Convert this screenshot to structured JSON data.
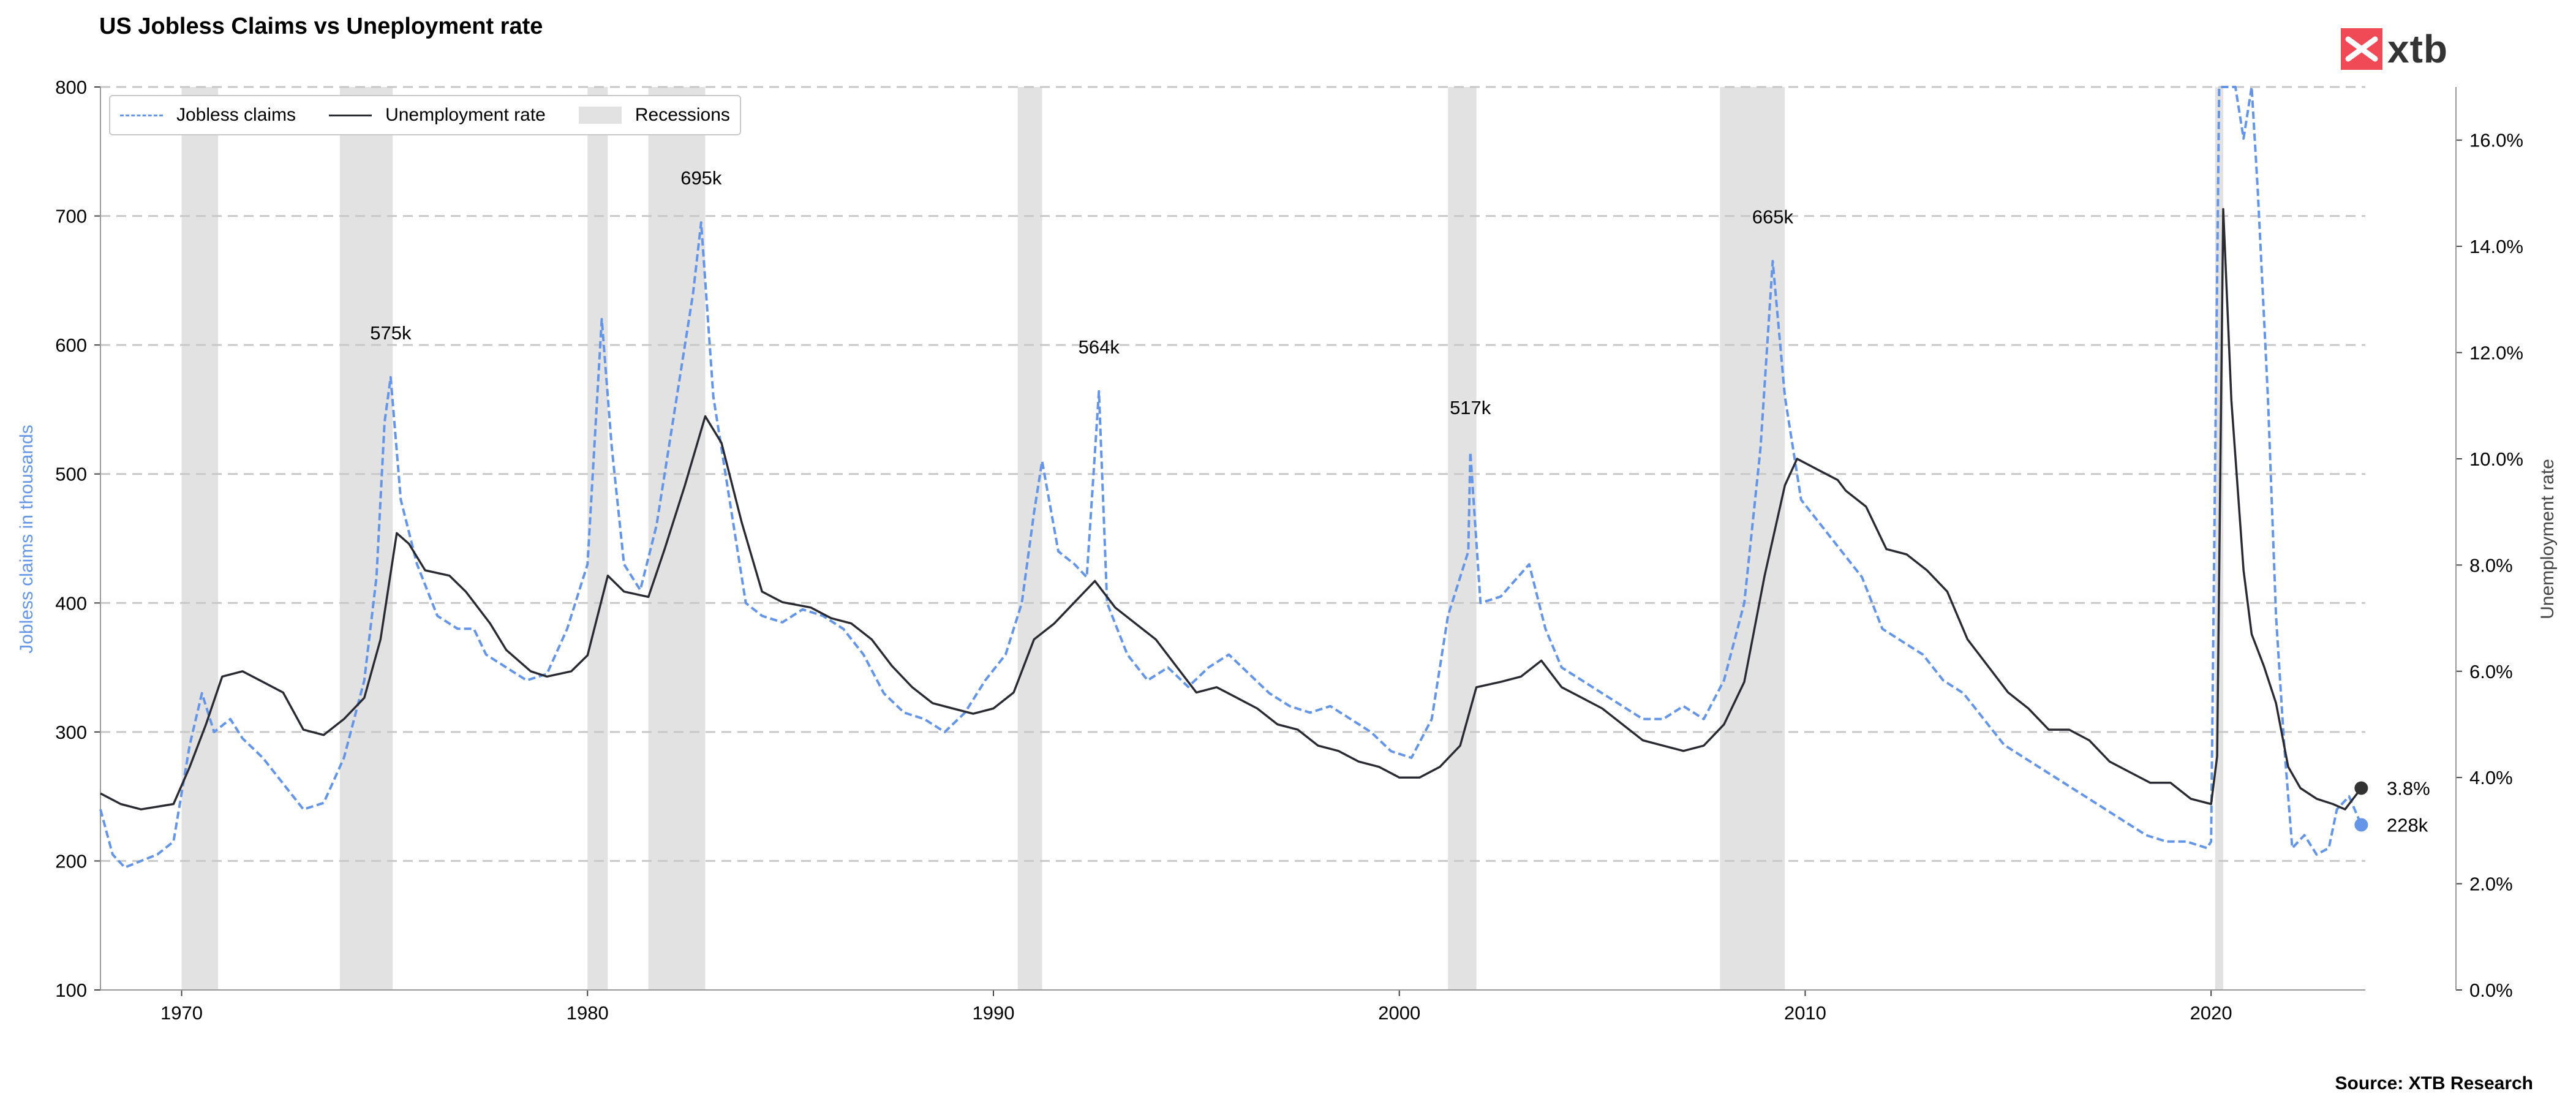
{
  "title": "US Jobless Claims vs Uneployment rate",
  "source": "Source: XTB Research",
  "logo_text": "xtb",
  "colors": {
    "claims": "#6495e6",
    "unemployment": "#2a2a33",
    "recession": "#e2e2e2",
    "grid": "#c8c8c8",
    "logo": "#f04a57"
  },
  "legend": {
    "claims": "Jobless claims",
    "unemployment": "Unemployment rate",
    "recessions": "Recessions"
  },
  "axes": {
    "left_label": "Jobless claims in thousands",
    "right_label": "Unemployment rate"
  },
  "chart_data": {
    "type": "line",
    "title": "US Jobless Claims vs Uneployment rate",
    "x_range": [
      1968.0,
      2023.8
    ],
    "x_ticks": [
      "1970",
      "1980",
      "1990",
      "2000",
      "2010",
      "2020"
    ],
    "y_left": {
      "label": "Jobless claims in thousands",
      "range": [
        100,
        800
      ],
      "ticks": [
        "100",
        "200",
        "300",
        "400",
        "500",
        "600",
        "700",
        "800"
      ]
    },
    "y_right": {
      "label": "Unemployment rate",
      "range": [
        0,
        17
      ],
      "ticks": [
        "0.0%",
        "2.0%",
        "4.0%",
        "6.0%",
        "8.0%",
        "10.0%",
        "12.0%",
        "14.0%",
        "16.0%"
      ]
    },
    "grid": "horizontal dashed",
    "legend_position": "top-left",
    "recessions": [
      [
        1970.0,
        1970.9
      ],
      [
        1973.9,
        1975.2
      ],
      [
        1980.0,
        1980.5
      ],
      [
        1981.5,
        1982.9
      ],
      [
        1990.6,
        1991.2
      ],
      [
        2001.2,
        2001.9
      ],
      [
        2007.9,
        2009.5
      ],
      [
        2020.1,
        2020.3
      ]
    ],
    "series": [
      {
        "name": "Jobless claims",
        "axis": "left",
        "style": "dashed",
        "points": [
          [
            1968.0,
            240
          ],
          [
            1968.3,
            205
          ],
          [
            1968.6,
            195
          ],
          [
            1969.0,
            200
          ],
          [
            1969.4,
            205
          ],
          [
            1969.8,
            215
          ],
          [
            1970.2,
            290
          ],
          [
            1970.5,
            330
          ],
          [
            1970.8,
            300
          ],
          [
            1971.2,
            310
          ],
          [
            1971.5,
            295
          ],
          [
            1972.0,
            280
          ],
          [
            1972.5,
            260
          ],
          [
            1973.0,
            240
          ],
          [
            1973.5,
            245
          ],
          [
            1974.0,
            280
          ],
          [
            1974.5,
            340
          ],
          [
            1974.8,
            420
          ],
          [
            1975.0,
            540
          ],
          [
            1975.15,
            575
          ],
          [
            1975.4,
            480
          ],
          [
            1975.8,
            430
          ],
          [
            1976.3,
            390
          ],
          [
            1976.8,
            380
          ],
          [
            1977.2,
            380
          ],
          [
            1977.5,
            360
          ],
          [
            1978.0,
            350
          ],
          [
            1978.5,
            340
          ],
          [
            1979.0,
            345
          ],
          [
            1979.5,
            380
          ],
          [
            1980.0,
            430
          ],
          [
            1980.35,
            620
          ],
          [
            1980.6,
            520
          ],
          [
            1980.9,
            430
          ],
          [
            1981.3,
            410
          ],
          [
            1981.7,
            460
          ],
          [
            1982.2,
            560
          ],
          [
            1982.6,
            640
          ],
          [
            1982.8,
            695
          ],
          [
            1983.1,
            560
          ],
          [
            1983.5,
            480
          ],
          [
            1983.9,
            400
          ],
          [
            1984.3,
            390
          ],
          [
            1984.8,
            385
          ],
          [
            1985.3,
            395
          ],
          [
            1985.8,
            390
          ],
          [
            1986.3,
            380
          ],
          [
            1986.8,
            360
          ],
          [
            1987.3,
            330
          ],
          [
            1987.8,
            315
          ],
          [
            1988.3,
            310
          ],
          [
            1988.8,
            300
          ],
          [
            1989.3,
            315
          ],
          [
            1989.8,
            340
          ],
          [
            1990.3,
            360
          ],
          [
            1990.7,
            400
          ],
          [
            1991.0,
            470
          ],
          [
            1991.2,
            510
          ],
          [
            1991.6,
            440
          ],
          [
            1992.0,
            430
          ],
          [
            1992.3,
            420
          ],
          [
            1992.6,
            564
          ],
          [
            1992.8,
            400
          ],
          [
            1993.3,
            360
          ],
          [
            1993.8,
            340
          ],
          [
            1994.3,
            350
          ],
          [
            1994.8,
            335
          ],
          [
            1995.3,
            350
          ],
          [
            1995.8,
            360
          ],
          [
            1996.3,
            345
          ],
          [
            1996.8,
            330
          ],
          [
            1997.3,
            320
          ],
          [
            1997.8,
            315
          ],
          [
            1998.3,
            320
          ],
          [
            1998.8,
            310
          ],
          [
            1999.3,
            300
          ],
          [
            1999.8,
            285
          ],
          [
            2000.3,
            280
          ],
          [
            2000.8,
            310
          ],
          [
            2001.2,
            390
          ],
          [
            2001.7,
            440
          ],
          [
            2001.75,
            517
          ],
          [
            2002.0,
            400
          ],
          [
            2002.5,
            405
          ],
          [
            2003.2,
            430
          ],
          [
            2003.6,
            380
          ],
          [
            2004.0,
            350
          ],
          [
            2004.5,
            340
          ],
          [
            2005.0,
            330
          ],
          [
            2005.5,
            320
          ],
          [
            2006.0,
            310
          ],
          [
            2006.5,
            310
          ],
          [
            2007.0,
            320
          ],
          [
            2007.5,
            310
          ],
          [
            2008.0,
            340
          ],
          [
            2008.5,
            400
          ],
          [
            2008.9,
            520
          ],
          [
            2009.2,
            665
          ],
          [
            2009.5,
            560
          ],
          [
            2009.9,
            480
          ],
          [
            2010.4,
            460
          ],
          [
            2010.9,
            440
          ],
          [
            2011.4,
            420
          ],
          [
            2011.9,
            380
          ],
          [
            2012.4,
            370
          ],
          [
            2012.9,
            360
          ],
          [
            2013.4,
            340
          ],
          [
            2013.9,
            330
          ],
          [
            2014.4,
            310
          ],
          [
            2014.9,
            290
          ],
          [
            2015.4,
            280
          ],
          [
            2015.9,
            270
          ],
          [
            2016.4,
            260
          ],
          [
            2016.9,
            250
          ],
          [
            2017.4,
            240
          ],
          [
            2017.9,
            230
          ],
          [
            2018.4,
            220
          ],
          [
            2018.9,
            215
          ],
          [
            2019.4,
            215
          ],
          [
            2019.9,
            210
          ],
          [
            2020.0,
            215
          ],
          [
            2020.2,
            800
          ],
          [
            2020.4,
            800
          ],
          [
            2020.6,
            800
          ],
          [
            2020.8,
            760
          ],
          [
            2021.0,
            800
          ],
          [
            2021.15,
            720
          ],
          [
            2021.4,
            560
          ],
          [
            2021.6,
            390
          ],
          [
            2021.8,
            290
          ],
          [
            2022.0,
            210
          ],
          [
            2022.3,
            220
          ],
          [
            2022.6,
            205
          ],
          [
            2022.9,
            210
          ],
          [
            2023.1,
            240
          ],
          [
            2023.4,
            250
          ],
          [
            2023.7,
            228
          ]
        ]
      },
      {
        "name": "Unemployment rate",
        "axis": "right",
        "style": "solid",
        "points": [
          [
            1968.0,
            3.7
          ],
          [
            1968.5,
            3.5
          ],
          [
            1969.0,
            3.4
          ],
          [
            1969.8,
            3.5
          ],
          [
            1970.2,
            4.2
          ],
          [
            1970.6,
            5.0
          ],
          [
            1971.0,
            5.9
          ],
          [
            1971.5,
            6.0
          ],
          [
            1972.0,
            5.8
          ],
          [
            1972.5,
            5.6
          ],
          [
            1973.0,
            4.9
          ],
          [
            1973.5,
            4.8
          ],
          [
            1974.0,
            5.1
          ],
          [
            1974.5,
            5.5
          ],
          [
            1974.9,
            6.6
          ],
          [
            1975.3,
            8.6
          ],
          [
            1975.6,
            8.4
          ],
          [
            1976.0,
            7.9
          ],
          [
            1976.6,
            7.8
          ],
          [
            1977.0,
            7.5
          ],
          [
            1977.6,
            6.9
          ],
          [
            1978.0,
            6.4
          ],
          [
            1978.6,
            6.0
          ],
          [
            1979.0,
            5.9
          ],
          [
            1979.6,
            6.0
          ],
          [
            1980.0,
            6.3
          ],
          [
            1980.5,
            7.8
          ],
          [
            1980.9,
            7.5
          ],
          [
            1981.5,
            7.4
          ],
          [
            1981.9,
            8.3
          ],
          [
            1982.4,
            9.5
          ],
          [
            1982.9,
            10.8
          ],
          [
            1983.3,
            10.3
          ],
          [
            1983.8,
            8.8
          ],
          [
            1984.3,
            7.5
          ],
          [
            1984.8,
            7.3
          ],
          [
            1985.5,
            7.2
          ],
          [
            1986.0,
            7.0
          ],
          [
            1986.5,
            6.9
          ],
          [
            1987.0,
            6.6
          ],
          [
            1987.5,
            6.1
          ],
          [
            1988.0,
            5.7
          ],
          [
            1988.5,
            5.4
          ],
          [
            1989.0,
            5.3
          ],
          [
            1989.5,
            5.2
          ],
          [
            1990.0,
            5.3
          ],
          [
            1990.5,
            5.6
          ],
          [
            1991.0,
            6.6
          ],
          [
            1991.5,
            6.9
          ],
          [
            1992.0,
            7.3
          ],
          [
            1992.5,
            7.7
          ],
          [
            1993.0,
            7.2
          ],
          [
            1993.5,
            6.9
          ],
          [
            1994.0,
            6.6
          ],
          [
            1994.5,
            6.1
          ],
          [
            1995.0,
            5.6
          ],
          [
            1995.5,
            5.7
          ],
          [
            1996.0,
            5.5
          ],
          [
            1996.5,
            5.3
          ],
          [
            1997.0,
            5.0
          ],
          [
            1997.5,
            4.9
          ],
          [
            1998.0,
            4.6
          ],
          [
            1998.5,
            4.5
          ],
          [
            1999.0,
            4.3
          ],
          [
            1999.5,
            4.2
          ],
          [
            2000.0,
            4.0
          ],
          [
            2000.5,
            4.0
          ],
          [
            2001.0,
            4.2
          ],
          [
            2001.5,
            4.6
          ],
          [
            2001.9,
            5.7
          ],
          [
            2002.5,
            5.8
          ],
          [
            2003.0,
            5.9
          ],
          [
            2003.5,
            6.2
          ],
          [
            2004.0,
            5.7
          ],
          [
            2004.5,
            5.5
          ],
          [
            2005.0,
            5.3
          ],
          [
            2005.5,
            5.0
          ],
          [
            2006.0,
            4.7
          ],
          [
            2006.5,
            4.6
          ],
          [
            2007.0,
            4.5
          ],
          [
            2007.5,
            4.6
          ],
          [
            2008.0,
            5.0
          ],
          [
            2008.5,
            5.8
          ],
          [
            2009.0,
            7.8
          ],
          [
            2009.5,
            9.5
          ],
          [
            2009.8,
            10.0
          ],
          [
            2010.3,
            9.8
          ],
          [
            2010.8,
            9.6
          ],
          [
            2011.0,
            9.4
          ],
          [
            2011.5,
            9.1
          ],
          [
            2012.0,
            8.3
          ],
          [
            2012.5,
            8.2
          ],
          [
            2013.0,
            7.9
          ],
          [
            2013.5,
            7.5
          ],
          [
            2014.0,
            6.6
          ],
          [
            2014.5,
            6.1
          ],
          [
            2015.0,
            5.6
          ],
          [
            2015.5,
            5.3
          ],
          [
            2016.0,
            4.9
          ],
          [
            2016.5,
            4.9
          ],
          [
            2017.0,
            4.7
          ],
          [
            2017.5,
            4.3
          ],
          [
            2018.0,
            4.1
          ],
          [
            2018.5,
            3.9
          ],
          [
            2019.0,
            3.9
          ],
          [
            2019.5,
            3.6
          ],
          [
            2020.0,
            3.5
          ],
          [
            2020.15,
            4.4
          ],
          [
            2020.3,
            14.7
          ],
          [
            2020.5,
            11.1
          ],
          [
            2020.8,
            7.9
          ],
          [
            2021.0,
            6.7
          ],
          [
            2021.3,
            6.1
          ],
          [
            2021.6,
            5.4
          ],
          [
            2021.9,
            4.2
          ],
          [
            2022.2,
            3.8
          ],
          [
            2022.6,
            3.6
          ],
          [
            2023.0,
            3.5
          ],
          [
            2023.3,
            3.4
          ],
          [
            2023.7,
            3.8
          ]
        ]
      }
    ],
    "annotations": [
      {
        "text": "575k",
        "x": 1975.15,
        "y": 575
      },
      {
        "text": "695k",
        "x": 1982.8,
        "y": 695
      },
      {
        "text": "564k",
        "x": 1992.6,
        "y": 564
      },
      {
        "text": "517k",
        "x": 2001.75,
        "y": 517
      },
      {
        "text": "665k",
        "x": 2009.2,
        "y": 665
      }
    ],
    "end_labels": [
      {
        "series": "Unemployment rate",
        "text": "3.8%",
        "value": 3.8
      },
      {
        "series": "Jobless claims",
        "text": "228k",
        "value": 228
      }
    ]
  }
}
